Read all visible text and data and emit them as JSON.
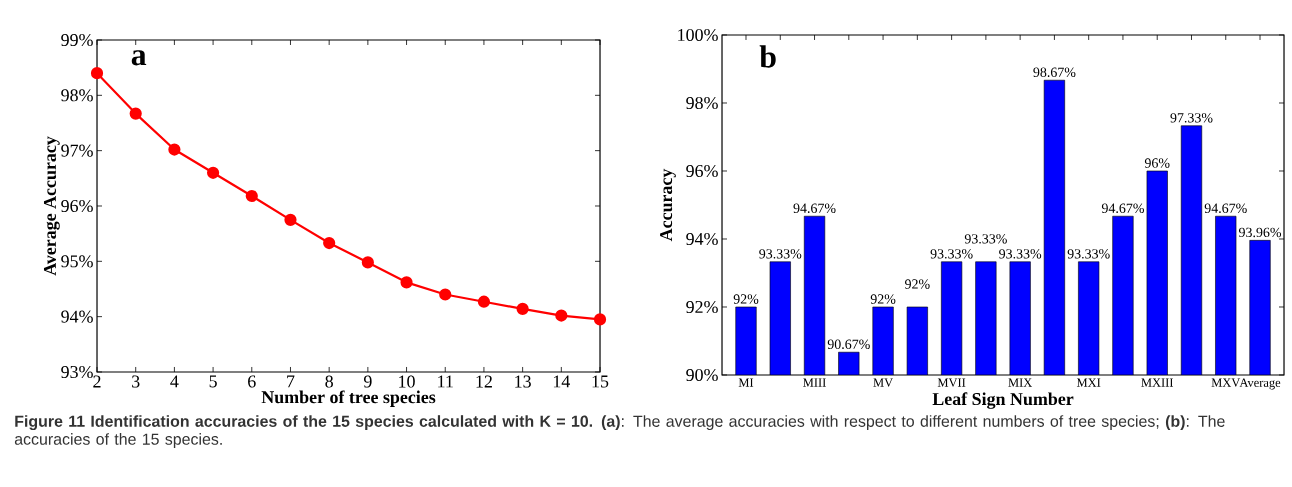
{
  "chart_data": [
    {
      "type": "line",
      "xlabel": "Number of tree species",
      "ylabel": "Average Accuracy",
      "color": "#ff0000",
      "marker": "circle",
      "x": [
        2,
        3,
        4,
        5,
        6,
        7,
        8,
        9,
        10,
        11,
        12,
        13,
        14,
        15
      ],
      "values": [
        98.4,
        97.67,
        97.02,
        96.6,
        96.18,
        95.75,
        95.33,
        94.98,
        94.62,
        94.4,
        94.27,
        94.14,
        94.02,
        93.95
      ],
      "xlim": [
        2,
        15
      ],
      "ylim": [
        93,
        99
      ],
      "xticks": [
        2,
        3,
        4,
        5,
        6,
        7,
        8,
        9,
        10,
        11,
        12,
        13,
        14,
        15
      ],
      "yticks": [
        {
          "value": 93,
          "label": "93%"
        },
        {
          "value": 94,
          "label": "94%"
        },
        {
          "value": 95,
          "label": "95%"
        },
        {
          "value": 96,
          "label": "96%"
        },
        {
          "value": 97,
          "label": "97%"
        },
        {
          "value": 98,
          "label": "98%"
        },
        {
          "value": 99,
          "label": "99%"
        }
      ],
      "annotations": [
        "a",
        "**Figure 11 Identification accuracies of the 15 species calculated with K = 10. (a)**: The average accuracies with respect to different numbers of tree species; **(b)**: The accuracies of the 15 species."
      ]
    },
    {
      "type": "bar",
      "xlabel": "Leaf Sign Number",
      "ylabel": "Accuracy",
      "color": "#0000ff",
      "categories": [
        "MI",
        null,
        "MIII",
        null,
        "MV",
        null,
        "MVII",
        null,
        "MIX",
        null,
        "MXI",
        null,
        "MXIII",
        null,
        "MXV",
        "Average"
      ],
      "values": [
        92,
        93.33,
        94.67,
        90.67,
        92,
        92,
        93.33,
        93.33,
        93.33,
        98.67,
        93.33,
        94.67,
        96,
        97.33,
        94.67,
        93.96
      ],
      "value_labels": [
        "92%",
        "93.33%",
        "94.67%",
        "90.67%",
        "92%",
        "92%",
        "93.33%",
        "93.33%",
        "93.33%",
        "98.67%",
        "93.33%",
        "94.67%",
        "96%",
        "97.33%",
        "94.67%",
        "93.96%"
      ],
      "ylim": [
        90,
        100
      ],
      "yticks": [
        {
          "value": 90,
          "label": "90%"
        },
        {
          "value": 92,
          "label": "92%"
        },
        {
          "value": 94,
          "label": "94%"
        },
        {
          "value": 96,
          "label": "96%"
        },
        {
          "value": 98,
          "label": "98%"
        },
        {
          "value": 100,
          "label": "100%"
        }
      ],
      "annotations": [
        "b"
      ]
    }
  ]
}
